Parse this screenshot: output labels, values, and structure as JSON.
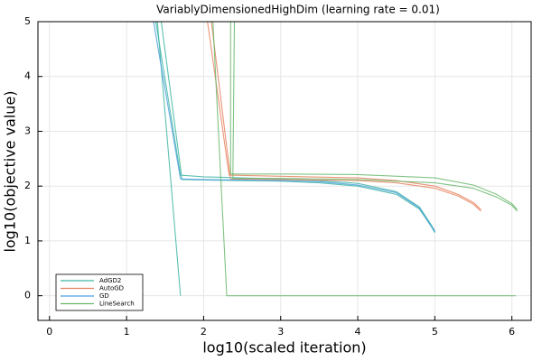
{
  "chart_data": {
    "type": "line",
    "title": "VariablyDimensionedHighDim (learning rate = 0.01)",
    "xlabel": "log10(scaled iteration)",
    "ylabel": "log10(objective value)",
    "xlim": [
      -0.15,
      6.25
    ],
    "ylim": [
      -0.45,
      5
    ],
    "xticks": [
      0,
      1,
      2,
      3,
      4,
      5,
      6
    ],
    "yticks": [
      0,
      1,
      2,
      3,
      4,
      5
    ],
    "xtick_labels": [
      "0",
      "1",
      "2",
      "3",
      "4",
      "5",
      "6"
    ],
    "ytick_labels": [
      "0",
      "1",
      "2",
      "3",
      "4",
      "5"
    ],
    "grid": true,
    "legend_position": "bottom-left",
    "series": [
      {
        "name": "AdGD2",
        "color": "#3eb6a4",
        "runs": [
          [
            [
              1.4,
              5.0
            ],
            [
              1.7,
              0.0
            ]
          ],
          [
            [
              1.38,
              5.0
            ],
            [
              1.7,
              2.2
            ],
            [
              2.0,
              2.17
            ],
            [
              3.0,
              2.13
            ],
            [
              3.5,
              2.1
            ],
            [
              4.0,
              2.05
            ],
            [
              4.5,
              1.9
            ],
            [
              4.8,
              1.62
            ],
            [
              4.95,
              1.3
            ],
            [
              5.0,
              1.18
            ]
          ],
          [
            [
              1.45,
              5.0
            ],
            [
              1.72,
              2.12
            ],
            [
              2.0,
              2.11
            ],
            [
              3.0,
              2.09
            ],
            [
              3.5,
              2.06
            ],
            [
              4.0,
              2.0
            ],
            [
              4.5,
              1.85
            ],
            [
              4.8,
              1.58
            ],
            [
              4.95,
              1.27
            ],
            [
              5.0,
              1.15
            ]
          ]
        ]
      },
      {
        "name": "AutoGD",
        "color": "#e5825f",
        "runs": [
          [
            [
              2.05,
              5.0
            ],
            [
              2.33,
              2.2
            ],
            [
              3.0,
              2.18
            ],
            [
              4.0,
              2.15
            ],
            [
              4.5,
              2.1
            ],
            [
              5.0,
              2.0
            ],
            [
              5.3,
              1.85
            ],
            [
              5.5,
              1.7
            ],
            [
              5.6,
              1.57
            ]
          ],
          [
            [
              2.1,
              5.0
            ],
            [
              2.35,
              2.13
            ],
            [
              3.0,
              2.12
            ],
            [
              4.0,
              2.1
            ],
            [
              4.5,
              2.06
            ],
            [
              5.0,
              1.96
            ],
            [
              5.3,
              1.82
            ],
            [
              5.5,
              1.67
            ],
            [
              5.6,
              1.54
            ]
          ]
        ]
      },
      {
        "name": "GD",
        "color": "#4c9fe0",
        "runs": [
          [
            [
              1.35,
              5.0
            ],
            [
              1.7,
              2.13
            ],
            [
              2.0,
              2.12
            ],
            [
              3.0,
              2.1
            ],
            [
              3.5,
              2.08
            ],
            [
              4.0,
              2.02
            ],
            [
              4.5,
              1.88
            ],
            [
              4.8,
              1.6
            ],
            [
              4.95,
              1.28
            ],
            [
              5.0,
              1.16
            ]
          ]
        ]
      },
      {
        "name": "LineSearch",
        "color": "#6bb86d",
        "runs": [
          [
            [
              2.12,
              5.0
            ],
            [
              2.3,
              0.0
            ],
            [
              3.0,
              0.0
            ],
            [
              4.0,
              0.0
            ],
            [
              5.0,
              0.0
            ],
            [
              6.0,
              0.0
            ],
            [
              6.05,
              0.0
            ]
          ],
          [
            [
              2.35,
              5.0
            ],
            [
              2.35,
              2.22
            ],
            [
              3.0,
              2.22
            ],
            [
              4.0,
              2.21
            ],
            [
              5.0,
              2.15
            ],
            [
              5.5,
              2.02
            ],
            [
              5.8,
              1.85
            ],
            [
              6.0,
              1.68
            ],
            [
              6.07,
              1.57
            ]
          ],
          [
            [
              2.4,
              5.0
            ],
            [
              2.38,
              2.14
            ],
            [
              3.0,
              2.14
            ],
            [
              4.0,
              2.12
            ],
            [
              5.0,
              2.06
            ],
            [
              5.5,
              1.96
            ],
            [
              5.8,
              1.8
            ],
            [
              6.0,
              1.65
            ],
            [
              6.07,
              1.54
            ]
          ]
        ]
      }
    ]
  }
}
